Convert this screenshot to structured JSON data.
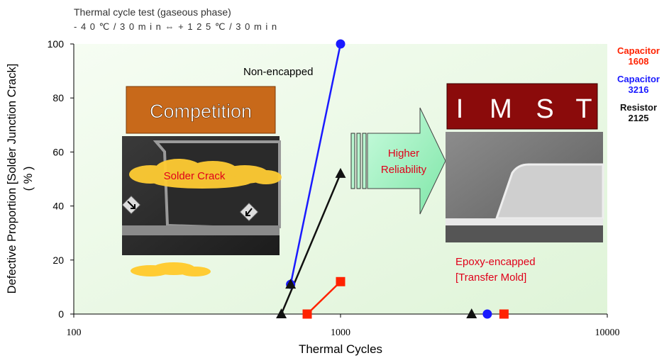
{
  "caption": {
    "line1": "Thermal cycle test (gaseous phase)",
    "line2": "- 4 0 ℃ / 3 0 m i n ⇔ + 1 2 5 ℃ / 3 0 m i n"
  },
  "legend": [
    {
      "name": "Capacitor\n1608",
      "line1": "Capacitor",
      "line2": "1608",
      "color": "#ff2200"
    },
    {
      "name": "Capacitor\n3216",
      "line1": "Capacitor",
      "line2": "3216",
      "color": "#1a1aff"
    },
    {
      "name": "Resistor\n2125",
      "line1": "Resistor",
      "line2": "2125",
      "color": "#111111"
    }
  ],
  "annotations": {
    "non_encapped": "Non-encapped",
    "competition": "Competition",
    "solder_crack": "Solder Crack",
    "higher": "Higher",
    "reliability": "Reliability",
    "imst_letters": [
      "I",
      "M",
      "S",
      "T"
    ],
    "epoxy_line1": "Epoxy-encapped",
    "epoxy_line2": "[Transfer Mold]"
  },
  "colors": {
    "plot_background": "#e9f8e4",
    "competition_box": "#c8691a",
    "imst_box": "#8b0b0b",
    "arrow_fill": "#9ff0c0",
    "cloud": "#ffcc33"
  },
  "chart_data": {
    "type": "line",
    "title": "",
    "xlabel": "Thermal Cycles",
    "ylabel": "Defective Proportion [Solder Junction Crack]\n( % )",
    "ylabel_line1": "Defective Proportion [Solder Junction Crack]",
    "ylabel_line2": "( % )",
    "x_scale": "log",
    "xlim": [
      100,
      10000
    ],
    "ylim": [
      0,
      100
    ],
    "x_ticks": [
      100,
      1000,
      10000
    ],
    "x_tick_labels": [
      "100",
      "1000",
      "10000"
    ],
    "y_ticks": [
      0,
      20,
      40,
      60,
      80,
      100
    ],
    "y_tick_labels": [
      "0",
      "20",
      "40",
      "60",
      "80",
      "100"
    ],
    "grid": false,
    "series": [
      {
        "name": "Capacitor\n1608",
        "color": "#ff2200",
        "marker": "square",
        "lines": [
          [
            {
              "x": 750,
              "y": 0
            },
            {
              "x": 1000,
              "y": 12
            }
          ]
        ],
        "points": [
          {
            "x": 750,
            "y": 0
          },
          {
            "x": 1000,
            "y": 12
          },
          {
            "x": 4100,
            "y": 0
          }
        ]
      },
      {
        "name": "Capacitor\n3216",
        "color": "#1a1aff",
        "marker": "circle",
        "lines": [
          [
            {
              "x": 650,
              "y": 11
            },
            {
              "x": 1000,
              "y": 100
            }
          ]
        ],
        "points": [
          {
            "x": 650,
            "y": 11
          },
          {
            "x": 1000,
            "y": 100
          },
          {
            "x": 3550,
            "y": 0
          }
        ]
      },
      {
        "name": "Resistor\n2125",
        "color": "#111111",
        "marker": "triangle",
        "lines": [
          [
            {
              "x": 600,
              "y": 0
            },
            {
              "x": 1000,
              "y": 52
            }
          ]
        ],
        "points": [
          {
            "x": 600,
            "y": 0
          },
          {
            "x": 650,
            "y": 11
          },
          {
            "x": 1000,
            "y": 52
          },
          {
            "x": 3100,
            "y": 0
          }
        ]
      }
    ]
  }
}
